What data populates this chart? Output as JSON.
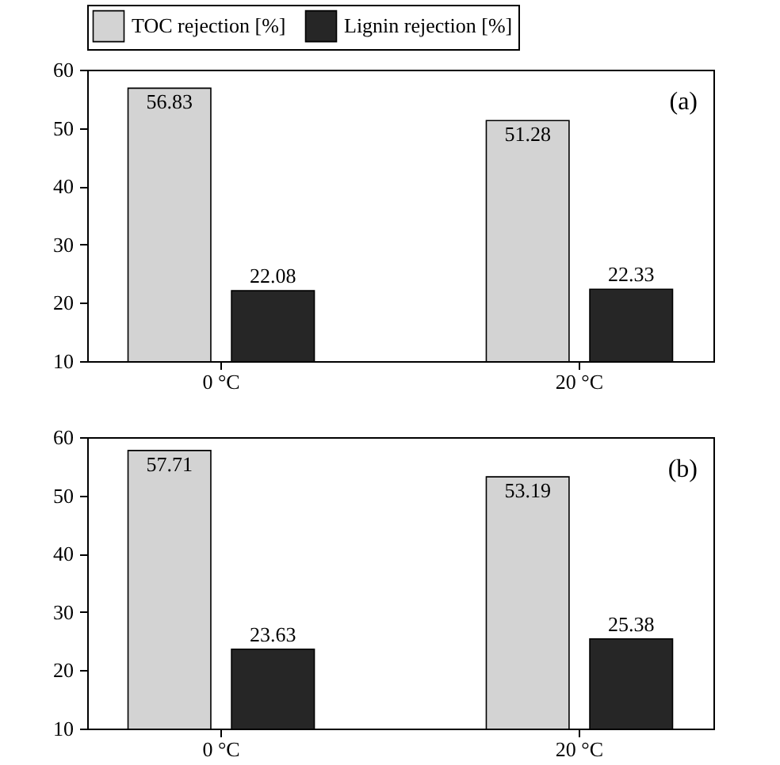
{
  "chart_data": [
    {
      "type": "bar",
      "categories": [
        "0 °C",
        "20 °C"
      ],
      "series": [
        {
          "name": "TOC rejection [%]",
          "color": "#d3d3d3",
          "values": [
            56.83,
            51.28
          ]
        },
        {
          "name": "Lignin rejection [%]",
          "color": "#262626",
          "values": [
            22.08,
            22.33
          ]
        }
      ],
      "ylim": [
        10,
        60
      ],
      "yticks": [
        10,
        20,
        30,
        40,
        50,
        60
      ],
      "data_labels": true,
      "annotations": [
        "(a)"
      ],
      "legend": "top",
      "grid": false
    },
    {
      "type": "bar",
      "categories": [
        "0 °C",
        "20 °C"
      ],
      "series": [
        {
          "name": "TOC rejection [%]",
          "color": "#d3d3d3",
          "values": [
            57.71,
            53.19
          ]
        },
        {
          "name": "Lignin rejection [%]",
          "color": "#262626",
          "values": [
            23.63,
            25.38
          ]
        }
      ],
      "ylim": [
        10,
        60
      ],
      "yticks": [
        10,
        20,
        30,
        40,
        50,
        60
      ],
      "data_labels": true,
      "annotations": [
        "(b)"
      ],
      "grid": false
    }
  ]
}
